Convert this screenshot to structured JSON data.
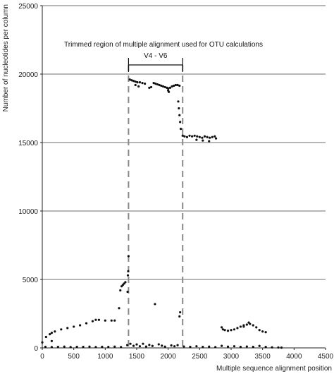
{
  "chart_data": {
    "type": "scatter",
    "xlabel": "Multiple sequence alignment position",
    "ylabel": "Number of nucleotides per column",
    "xlim": [
      0,
      4500
    ],
    "ylim": [
      0,
      25000
    ],
    "x_ticks": [
      0,
      500,
      1000,
      1500,
      2000,
      2500,
      3000,
      3500,
      4000,
      4500
    ],
    "y_ticks": [
      0,
      5000,
      10000,
      15000,
      20000,
      25000
    ],
    "grid": "horizontal",
    "annotation": {
      "text": "Trimmed region of multiple alignment used for OTU calculations",
      "region_label": "V4 - V6",
      "region_start": 1370,
      "region_end": 2230
    },
    "series": [
      {
        "points": [
          [
            0,
            400
          ],
          [
            60,
            800
          ],
          [
            120,
            1000
          ],
          [
            200,
            1200
          ],
          [
            300,
            1350
          ],
          [
            400,
            1450
          ],
          [
            500,
            1550
          ],
          [
            600,
            1650
          ],
          [
            700,
            1800
          ],
          [
            800,
            1950
          ],
          [
            850,
            2050
          ],
          [
            900,
            2050
          ],
          [
            1000,
            2000
          ],
          [
            1100,
            2000
          ],
          [
            1150,
            2000
          ],
          [
            150,
            500
          ],
          [
            150,
            1100
          ],
          [
            1220,
            2900
          ],
          [
            1240,
            4200
          ],
          [
            1260,
            4500
          ],
          [
            1280,
            4600
          ],
          [
            1300,
            4700
          ],
          [
            1320,
            4800
          ],
          [
            1360,
            5300
          ],
          [
            1365,
            5600
          ],
          [
            1370,
            6700
          ],
          [
            1355,
            4100
          ],
          [
            1390,
            19600
          ],
          [
            1420,
            19550
          ],
          [
            1450,
            19500
          ],
          [
            1480,
            19450
          ],
          [
            1510,
            19400
          ],
          [
            1550,
            19400
          ],
          [
            1590,
            19350
          ],
          [
            1630,
            19300
          ],
          [
            1480,
            19200
          ],
          [
            1530,
            19100
          ],
          [
            1700,
            19000
          ],
          [
            1730,
            19050
          ],
          [
            1770,
            19350
          ],
          [
            1800,
            19300
          ],
          [
            1830,
            19250
          ],
          [
            1860,
            19200
          ],
          [
            1890,
            19150
          ],
          [
            1920,
            19100
          ],
          [
            1950,
            19050
          ],
          [
            1980,
            19000
          ],
          [
            2000,
            18950
          ],
          [
            2030,
            19000
          ],
          [
            2060,
            19100
          ],
          [
            2090,
            19150
          ],
          [
            2120,
            19200
          ],
          [
            2150,
            19200
          ],
          [
            2180,
            19150
          ],
          [
            2000,
            18800
          ],
          [
            2010,
            18700
          ],
          [
            2160,
            18000
          ],
          [
            2170,
            17500
          ],
          [
            2180,
            17000
          ],
          [
            2190,
            16500
          ],
          [
            2200,
            16000
          ],
          [
            1790,
            3200
          ],
          [
            2180,
            2300
          ],
          [
            2190,
            2600
          ],
          [
            2230,
            15500
          ],
          [
            2260,
            15450
          ],
          [
            2300,
            15400
          ],
          [
            2340,
            15500
          ],
          [
            2380,
            15450
          ],
          [
            2420,
            15500
          ],
          [
            2460,
            15450
          ],
          [
            2500,
            15400
          ],
          [
            2540,
            15350
          ],
          [
            2580,
            15450
          ],
          [
            2620,
            15400
          ],
          [
            2660,
            15350
          ],
          [
            2700,
            15400
          ],
          [
            2740,
            15450
          ],
          [
            2760,
            15300
          ],
          [
            2450,
            15200
          ],
          [
            2550,
            15150
          ],
          [
            2650,
            15100
          ],
          [
            2850,
            1500
          ],
          [
            2870,
            1350
          ],
          [
            2900,
            1300
          ],
          [
            2950,
            1250
          ],
          [
            3000,
            1300
          ],
          [
            3050,
            1350
          ],
          [
            3100,
            1450
          ],
          [
            3150,
            1550
          ],
          [
            3200,
            1650
          ],
          [
            3250,
            1700
          ],
          [
            3300,
            1750
          ],
          [
            3350,
            1650
          ],
          [
            3400,
            1500
          ],
          [
            3450,
            1300
          ],
          [
            3500,
            1200
          ],
          [
            3550,
            1150
          ],
          [
            3200,
            1550
          ],
          [
            3280,
            1850
          ],
          [
            50,
            80
          ],
          [
            150,
            60
          ],
          [
            250,
            70
          ],
          [
            350,
            90
          ],
          [
            450,
            60
          ],
          [
            550,
            80
          ],
          [
            650,
            70
          ],
          [
            750,
            90
          ],
          [
            850,
            60
          ],
          [
            950,
            80
          ],
          [
            1050,
            70
          ],
          [
            1150,
            90
          ],
          [
            1250,
            60
          ],
          [
            1350,
            200
          ],
          [
            1400,
            300
          ],
          [
            1450,
            150
          ],
          [
            1500,
            250
          ],
          [
            1550,
            120
          ],
          [
            1600,
            300
          ],
          [
            1650,
            100
          ],
          [
            1700,
            220
          ],
          [
            1750,
            140
          ],
          [
            1850,
            260
          ],
          [
            1900,
            160
          ],
          [
            1950,
            90
          ],
          [
            2050,
            180
          ],
          [
            2100,
            120
          ],
          [
            2150,
            200
          ],
          [
            2250,
            100
          ],
          [
            2350,
            80
          ],
          [
            2450,
            120
          ],
          [
            2550,
            70
          ],
          [
            2650,
            90
          ],
          [
            2750,
            60
          ],
          [
            2850,
            150
          ],
          [
            2950,
            90
          ],
          [
            3050,
            120
          ],
          [
            3150,
            70
          ],
          [
            3250,
            100
          ],
          [
            3350,
            80
          ],
          [
            3450,
            140
          ],
          [
            3550,
            70
          ],
          [
            3650,
            40
          ],
          [
            3750,
            30
          ],
          [
            3800,
            20
          ]
        ]
      }
    ]
  }
}
